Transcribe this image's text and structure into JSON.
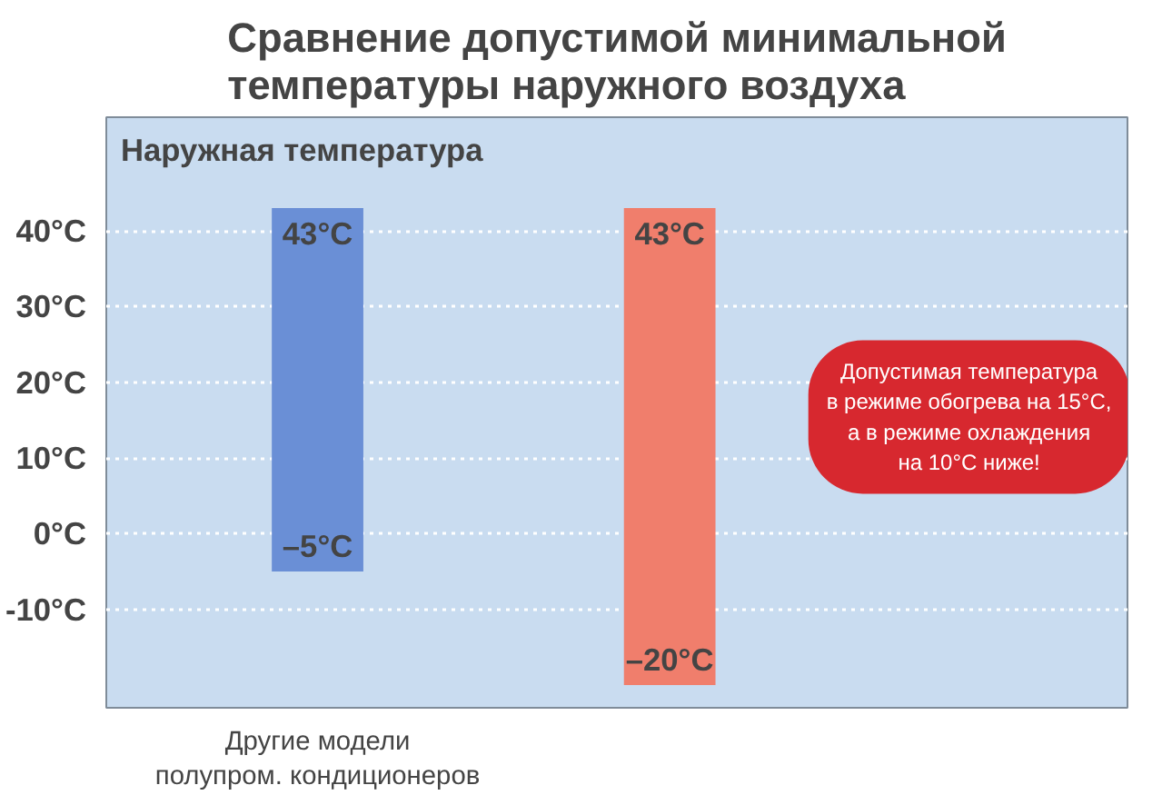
{
  "chart_data": {
    "type": "bar",
    "title": "Сравнение допустимой минимальной\nтемпературы наружного воздуха",
    "ylabel": "Наружная температура",
    "categories": [
      "Другие модели\nполупром. кондиционеров",
      null
    ],
    "values": [
      48,
      63
    ],
    "base": [
      -5,
      -20
    ],
    "colors": [
      "#6a8fd6",
      "#f07e6c"
    ],
    "value_labels": [
      "43°C",
      "43°C"
    ],
    "annotations": [
      {
        "text": "–5°C",
        "y": -5
      },
      {
        "text": "–20°C",
        "y": -20
      },
      "Допустимая температура\nв режиме обогрева на 15°C,\nа в режиме охлаждения\nна 10°C ниже!"
    ],
    "ylim": [
      -23,
      55
    ],
    "yticks": [
      {
        "value": -10,
        "label": "-10°C"
      },
      {
        "value": 0,
        "label": "0°C"
      },
      {
        "value": 10,
        "label": "10°C"
      },
      {
        "value": 20,
        "label": "20°C"
      },
      {
        "value": 30,
        "label": "30°C"
      },
      {
        "value": 40,
        "label": "40°C"
      }
    ],
    "grid": "y"
  }
}
